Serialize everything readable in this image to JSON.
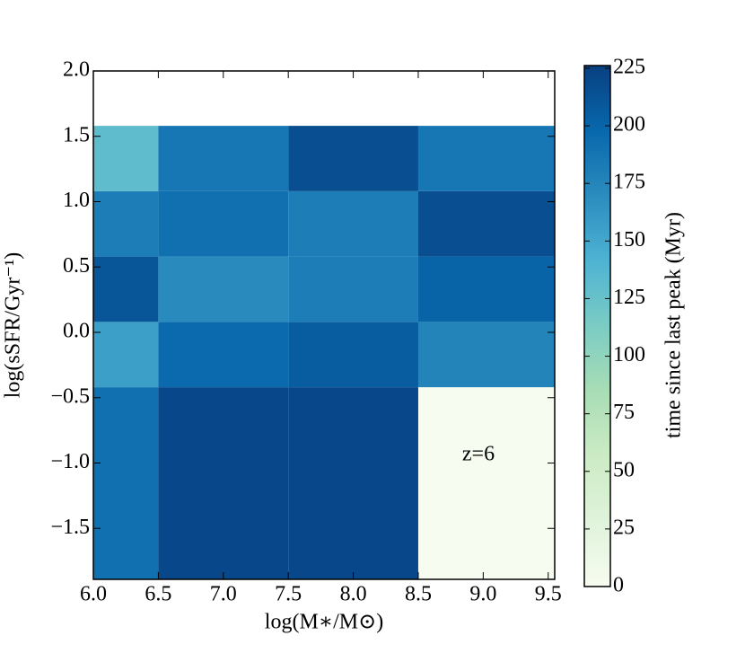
{
  "chart_data": {
    "type": "heatmap",
    "x_label": "log(M∗/M⊙)",
    "y_label": "log(sSFR/Gyr⁻¹)",
    "colorbar_label": "time since last  peak (Myr)",
    "annotation": "z=6",
    "colormap": "GnBu",
    "x_edges": [
      6.0,
      6.5,
      7.5,
      8.5,
      9.55
    ],
    "y_edges": [
      -1.89,
      -0.42,
      0.08,
      0.58,
      1.08,
      1.58
    ],
    "values": [
      [
        190,
        220,
        220,
        0
      ],
      [
        155,
        195,
        205,
        175
      ],
      [
        210,
        170,
        180,
        200
      ],
      [
        180,
        190,
        180,
        215
      ],
      [
        130,
        185,
        215,
        185
      ]
    ],
    "xlim": [
      6.0,
      9.55
    ],
    "ylim": [
      -1.89,
      2.0
    ],
    "clim": [
      0,
      225
    ],
    "xticks": [
      {
        "value": 6.0,
        "label": "6.0"
      },
      {
        "value": 6.5,
        "label": "6.5"
      },
      {
        "value": 7.0,
        "label": "7.0"
      },
      {
        "value": 7.5,
        "label": "7.5"
      },
      {
        "value": 8.0,
        "label": "8.0"
      },
      {
        "value": 8.5,
        "label": "8.5"
      },
      {
        "value": 9.0,
        "label": "9.0"
      },
      {
        "value": 9.5,
        "label": "9.5"
      }
    ],
    "yticks": [
      {
        "value": -1.5,
        "label": "−1.5"
      },
      {
        "value": -1.0,
        "label": "−1.0"
      },
      {
        "value": -0.5,
        "label": "−0.5"
      },
      {
        "value": 0,
        "label": "0.0"
      },
      {
        "value": 0.5,
        "label": "0.5"
      },
      {
        "value": 1.0,
        "label": "1.0"
      },
      {
        "value": 1.5,
        "label": "1.5"
      },
      {
        "value": 2.0,
        "label": "2.0"
      }
    ],
    "cticks": [
      0,
      25,
      50,
      75,
      100,
      125,
      150,
      175,
      200,
      225
    ]
  }
}
